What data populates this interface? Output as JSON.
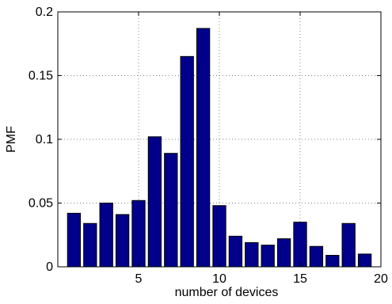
{
  "chart_data": {
    "type": "bar",
    "title": "",
    "xlabel": "number of devices",
    "ylabel": "PMF",
    "xlim": [
      0,
      20
    ],
    "ylim": [
      0,
      0.2
    ],
    "grid": true,
    "x": [
      1,
      2,
      3,
      4,
      5,
      6,
      7,
      8,
      9,
      10,
      11,
      12,
      13,
      14,
      15,
      16,
      17,
      18,
      19
    ],
    "values": [
      0.042,
      0.034,
      0.05,
      0.041,
      0.052,
      0.102,
      0.089,
      0.165,
      0.187,
      0.048,
      0.024,
      0.019,
      0.017,
      0.022,
      0.035,
      0.016,
      0.009,
      0.034,
      0.01
    ],
    "xticks": [
      5,
      10,
      15,
      20
    ],
    "xtick_labels": [
      "5",
      "10",
      "15",
      "20"
    ],
    "yticks": [
      0,
      0.05,
      0.1,
      0.15,
      0.2
    ],
    "ytick_labels": [
      "0",
      "0.05",
      "0.1",
      "0.15",
      "0.2"
    ],
    "bar_color": "#00008b"
  }
}
